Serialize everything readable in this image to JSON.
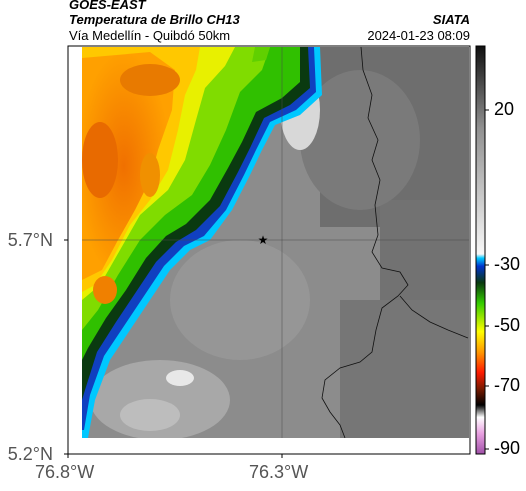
{
  "header": {
    "line1": "GOES-EAST",
    "line2": "Temperatura de Brillo CH13",
    "line3": "Vía Medellín - Quibdó 50km",
    "right_top": "SIATA",
    "right_bottom": "2024-01-23 08:09"
  },
  "map": {
    "y_ticks": [
      "5.7°N",
      "5.2°N"
    ],
    "x_ticks": [
      "76.8°W",
      "76.3°W"
    ],
    "gridline_lat": 5.7,
    "gridline_lon": -76.3,
    "marker": "star-icon"
  },
  "colorbar": {
    "labels": [
      "20",
      "-30",
      "-50",
      "-70",
      "-90"
    ]
  }
}
